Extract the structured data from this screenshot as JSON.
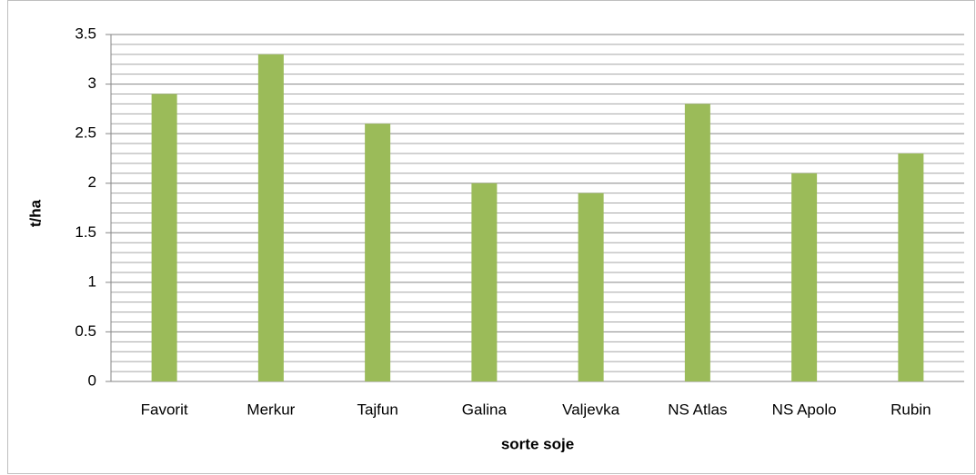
{
  "chart_data": {
    "type": "bar",
    "x_label": "sorte soje",
    "y_label": "t/ha",
    "categories": [
      "Favorit",
      "Merkur",
      "Tajfun",
      "Galina",
      "Valjevka",
      "NS Atlas",
      "NS Apolo",
      "Rubin"
    ],
    "values": [
      2.9,
      3.3,
      2.6,
      2.0,
      1.9,
      2.8,
      2.1,
      2.3
    ],
    "color": "#9bbb59",
    "ylim": [
      0,
      3.5
    ],
    "yticks": [
      0,
      0.5,
      1,
      1.5,
      2,
      2.5,
      3,
      3.5
    ],
    "yticks_minor": [
      0.1,
      0.2,
      0.3,
      0.4,
      0.6,
      0.7,
      0.8,
      0.9,
      1.1,
      1.2,
      1.3,
      1.4,
      1.6,
      1.7,
      1.8,
      1.9,
      2.1,
      2.2,
      2.3,
      2.4,
      2.6,
      2.7,
      2.8,
      2.9,
      3.1,
      3.2,
      3.3,
      3.4
    ],
    "grid": true
  }
}
